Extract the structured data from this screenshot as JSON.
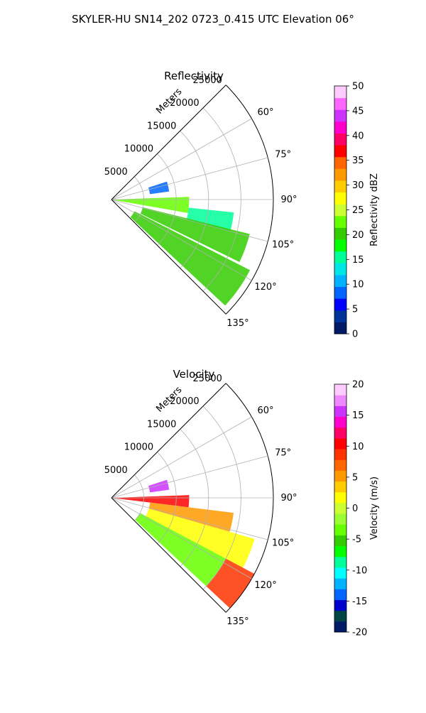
{
  "suptitle": "SKYLER-HU  SN14_202  0723_0.415 UTC Elevation 06°",
  "colors": {
    "grid": "#b0b0b0",
    "refl_scale": [
      "#001a66",
      "#003399",
      "#0000ff",
      "#0066ff",
      "#00b3ff",
      "#00e5e5",
      "#00ff99",
      "#00ff00",
      "#33cc00",
      "#66ff00",
      "#ccff33",
      "#ffff00",
      "#ffcc00",
      "#ff9900",
      "#ff6600",
      "#ff0000",
      "#ff0066",
      "#ff00cc",
      "#cc33ff",
      "#ff66ff",
      "#ffccff"
    ],
    "vel_scale": [
      "#001a66",
      "#004444",
      "#0000cc",
      "#0066ff",
      "#00b3ff",
      "#00ffff",
      "#00ff99",
      "#00ff00",
      "#33cc00",
      "#66ff00",
      "#99ff33",
      "#ccff33",
      "#ffff00",
      "#ffcc00",
      "#ff9900",
      "#ff6600",
      "#ff3300",
      "#ff0000",
      "#ff0066",
      "#ff00cc",
      "#cc33ff",
      "#ee88ff",
      "#ffccff"
    ]
  },
  "chart_data": [
    {
      "type": "heatmap",
      "subtype": "polar-ppi",
      "title": "Reflectivity",
      "radial_label": "Meters",
      "radial_ticks": [
        5000,
        10000,
        15000,
        20000,
        25000
      ],
      "rlim": [
        0,
        25000
      ],
      "angle_ticks": [
        "60°",
        "75°",
        "90°",
        "105°",
        "120°",
        "135°"
      ],
      "theta_range_deg": [
        45,
        135
      ],
      "grid": true,
      "colorbar": {
        "label": "Reflectivity dBZ",
        "min": 0,
        "max": 50,
        "ticks": [
          0,
          5,
          10,
          15,
          20,
          25,
          30,
          35,
          40,
          45,
          50
        ]
      },
      "echo_regions": [
        {
          "theta_deg": [
            88,
            100
          ],
          "range_m": [
            0,
            12000
          ],
          "value": 22
        },
        {
          "theta_deg": [
            96,
            105
          ],
          "range_m": [
            12000,
            19000
          ],
          "value": 15
        },
        {
          "theta_deg": [
            104,
            116
          ],
          "range_m": [
            5000,
            22000
          ],
          "value": 20
        },
        {
          "theta_deg": [
            117,
            133
          ],
          "range_m": [
            4000,
            24000
          ],
          "value": 21
        },
        {
          "theta_deg": [
            72,
            82
          ],
          "range_m": [
            6000,
            9000
          ],
          "value": 8
        }
      ]
    },
    {
      "type": "heatmap",
      "subtype": "polar-ppi",
      "title": "Velocity",
      "radial_label": "Meters",
      "radial_ticks": [
        5000,
        10000,
        15000,
        20000,
        25000
      ],
      "rlim": [
        0,
        25000
      ],
      "angle_ticks": [
        "60°",
        "75°",
        "90°",
        "105°",
        "120°",
        "135°"
      ],
      "theta_range_deg": [
        45,
        135
      ],
      "grid": true,
      "colorbar": {
        "label": "Velocity (m/s)",
        "min": -20,
        "max": 20,
        "ticks": [
          -20,
          -15,
          -10,
          -5,
          0,
          5,
          10,
          15,
          20
        ]
      },
      "echo_regions": [
        {
          "theta_deg": [
            88,
            97
          ],
          "range_m": [
            0,
            12000
          ],
          "value": 10
        },
        {
          "theta_deg": [
            97,
            106
          ],
          "range_m": [
            6000,
            19000
          ],
          "value": 6
        },
        {
          "theta_deg": [
            106,
            118
          ],
          "range_m": [
            6000,
            23000
          ],
          "value": 2
        },
        {
          "theta_deg": [
            118,
            133
          ],
          "range_m": [
            5000,
            20000
          ],
          "value": -4
        },
        {
          "theta_deg": [
            118,
            133
          ],
          "range_m": [
            20000,
            25000
          ],
          "value": 8
        },
        {
          "theta_deg": [
            72,
            82
          ],
          "range_m": [
            6000,
            9000
          ],
          "value": 15
        }
      ]
    }
  ]
}
